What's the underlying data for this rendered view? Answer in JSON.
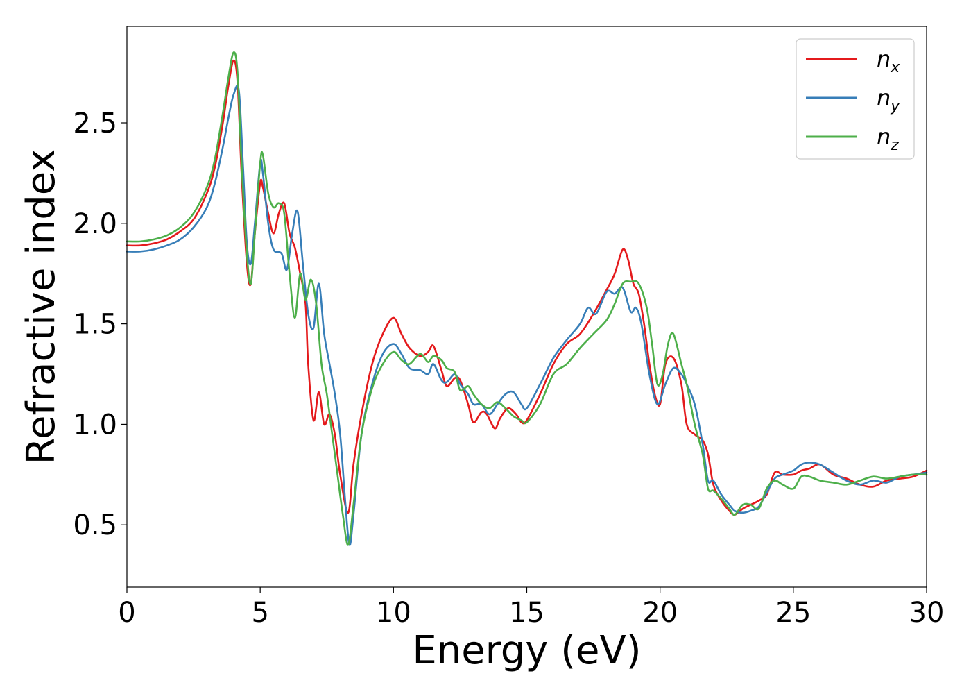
{
  "chart_data": {
    "type": "line",
    "title": "",
    "xlabel": "Energy (eV)",
    "ylabel": "Refractive index",
    "xlim": [
      0,
      30
    ],
    "ylim": [
      0.19,
      2.98
    ],
    "xticks": [
      "0",
      "5",
      "10",
      "15",
      "20",
      "25",
      "30"
    ],
    "xtick_values": [
      0,
      5,
      10,
      15,
      20,
      25,
      30
    ],
    "yticks": [
      "0.5",
      "1.0",
      "1.5",
      "2.0",
      "2.5"
    ],
    "ytick_values": [
      0.5,
      1.0,
      1.5,
      2.0,
      2.5
    ],
    "grid": false,
    "legend_position": "top-right",
    "series": [
      {
        "name": "n_x",
        "label_main": "n",
        "label_sub": "x",
        "color": "#e41a1c",
        "x": [
          0,
          0.5,
          1,
          1.5,
          2,
          2.5,
          3,
          3.3,
          3.6,
          3.8,
          4.0,
          4.15,
          4.3,
          4.5,
          4.65,
          4.8,
          5.0,
          5.1,
          5.3,
          5.5,
          5.7,
          5.9,
          6.1,
          6.3,
          6.5,
          6.7,
          6.8,
          7.0,
          7.2,
          7.4,
          7.6,
          7.8,
          8.0,
          8.3,
          8.5,
          8.8,
          9.2,
          9.6,
          10.0,
          10.3,
          10.6,
          11.0,
          11.3,
          11.5,
          11.8,
          12.0,
          12.3,
          12.5,
          12.8,
          13.0,
          13.3,
          13.5,
          13.8,
          14.0,
          14.3,
          14.6,
          14.8,
          15.0,
          15.5,
          16.0,
          16.5,
          17.0,
          17.5,
          18.0,
          18.3,
          18.6,
          18.8,
          19.0,
          19.2,
          19.4,
          19.6,
          19.8,
          20.0,
          20.2,
          20.5,
          20.8,
          21.0,
          21.3,
          21.6,
          21.8,
          22.0,
          22.3,
          22.6,
          22.8,
          23.1,
          23.4,
          23.7,
          24.0,
          24.3,
          24.6,
          25.0,
          25.3,
          25.6,
          26.0,
          26.5,
          27.0,
          27.5,
          28.0,
          28.5,
          29.0,
          29.5,
          30.0
        ],
        "values": [
          1.89,
          1.89,
          1.9,
          1.92,
          1.96,
          2.02,
          2.15,
          2.28,
          2.5,
          2.68,
          2.81,
          2.7,
          2.25,
          1.8,
          1.7,
          1.95,
          2.2,
          2.18,
          2.05,
          1.95,
          2.05,
          2.1,
          1.95,
          1.88,
          1.75,
          1.6,
          1.3,
          1.02,
          1.16,
          1.0,
          1.05,
          0.95,
          0.75,
          0.56,
          0.8,
          1.05,
          1.3,
          1.45,
          1.53,
          1.45,
          1.38,
          1.34,
          1.36,
          1.39,
          1.27,
          1.19,
          1.23,
          1.22,
          1.1,
          1.01,
          1.06,
          1.05,
          0.98,
          1.03,
          1.08,
          1.05,
          1.01,
          1.02,
          1.15,
          1.3,
          1.4,
          1.45,
          1.55,
          1.67,
          1.75,
          1.87,
          1.82,
          1.7,
          1.65,
          1.5,
          1.3,
          1.15,
          1.1,
          1.3,
          1.33,
          1.2,
          1.0,
          0.95,
          0.92,
          0.85,
          0.7,
          0.62,
          0.57,
          0.55,
          0.58,
          0.6,
          0.62,
          0.65,
          0.76,
          0.75,
          0.75,
          0.77,
          0.78,
          0.8,
          0.75,
          0.73,
          0.7,
          0.69,
          0.72,
          0.73,
          0.74,
          0.77
        ]
      },
      {
        "name": "n_y",
        "label_main": "n",
        "label_sub": "y",
        "color": "#377eb8",
        "x": [
          0,
          0.5,
          1,
          1.5,
          2,
          2.5,
          3,
          3.3,
          3.6,
          3.8,
          4.0,
          4.2,
          4.35,
          4.5,
          4.65,
          4.8,
          5.0,
          5.1,
          5.3,
          5.5,
          5.8,
          6.0,
          6.2,
          6.4,
          6.6,
          6.8,
          7.0,
          7.2,
          7.4,
          7.6,
          7.8,
          8.0,
          8.2,
          8.35,
          8.5,
          8.8,
          9.2,
          9.6,
          10.0,
          10.3,
          10.6,
          11.0,
          11.3,
          11.5,
          11.8,
          12.0,
          12.3,
          12.5,
          12.8,
          13.0,
          13.3,
          13.6,
          13.9,
          14.2,
          14.5,
          14.8,
          15.0,
          15.5,
          16.0,
          16.5,
          17.0,
          17.3,
          17.6,
          18.0,
          18.3,
          18.6,
          18.9,
          19.1,
          19.3,
          19.6,
          19.9,
          20.2,
          20.5,
          20.8,
          21.0,
          21.3,
          21.6,
          21.8,
          22.0,
          22.3,
          22.6,
          22.8,
          23.1,
          23.4,
          23.7,
          24.0,
          24.3,
          24.6,
          25.0,
          25.3,
          25.6,
          26.0,
          26.5,
          27.0,
          27.5,
          28.0,
          28.5,
          29.0,
          29.5,
          30.0
        ],
        "values": [
          1.86,
          1.86,
          1.87,
          1.89,
          1.92,
          1.98,
          2.08,
          2.2,
          2.38,
          2.52,
          2.64,
          2.66,
          2.3,
          1.9,
          1.8,
          2.0,
          2.3,
          2.25,
          2.0,
          1.87,
          1.85,
          1.77,
          1.95,
          2.06,
          1.8,
          1.55,
          1.48,
          1.7,
          1.45,
          1.3,
          1.15,
          0.95,
          0.6,
          0.4,
          0.55,
          0.95,
          1.2,
          1.35,
          1.4,
          1.35,
          1.28,
          1.27,
          1.25,
          1.3,
          1.22,
          1.21,
          1.25,
          1.2,
          1.15,
          1.1,
          1.1,
          1.05,
          1.1,
          1.15,
          1.16,
          1.1,
          1.08,
          1.2,
          1.33,
          1.42,
          1.5,
          1.58,
          1.55,
          1.66,
          1.65,
          1.68,
          1.56,
          1.58,
          1.5,
          1.25,
          1.1,
          1.2,
          1.28,
          1.25,
          1.2,
          1.1,
          0.9,
          0.72,
          0.72,
          0.65,
          0.6,
          0.57,
          0.56,
          0.57,
          0.59,
          0.66,
          0.73,
          0.75,
          0.77,
          0.8,
          0.81,
          0.8,
          0.76,
          0.72,
          0.7,
          0.72,
          0.71,
          0.74,
          0.75,
          0.76
        ]
      },
      {
        "name": "n_z",
        "label_main": "n",
        "label_sub": "z",
        "color": "#4daf4a",
        "x": [
          0,
          0.5,
          1,
          1.5,
          2,
          2.5,
          3,
          3.3,
          3.6,
          3.8,
          4.0,
          4.15,
          4.3,
          4.5,
          4.65,
          4.8,
          5.0,
          5.1,
          5.3,
          5.5,
          5.7,
          5.9,
          6.1,
          6.3,
          6.5,
          6.7,
          6.9,
          7.1,
          7.3,
          7.5,
          7.7,
          7.9,
          8.1,
          8.3,
          8.5,
          8.8,
          9.2,
          9.6,
          10.0,
          10.3,
          10.6,
          11.0,
          11.3,
          11.5,
          11.8,
          12.0,
          12.3,
          12.5,
          12.8,
          13.0,
          13.3,
          13.6,
          13.9,
          14.2,
          14.5,
          14.8,
          15.0,
          15.5,
          16.0,
          16.5,
          17.0,
          17.5,
          18.0,
          18.3,
          18.6,
          18.9,
          19.2,
          19.5,
          19.7,
          19.9,
          20.1,
          20.3,
          20.5,
          20.8,
          21.0,
          21.3,
          21.6,
          21.8,
          22.0,
          22.3,
          22.6,
          22.8,
          23.1,
          23.4,
          23.7,
          24.0,
          24.3,
          24.6,
          25.0,
          25.3,
          25.6,
          26.0,
          26.5,
          27.0,
          27.5,
          28.0,
          28.5,
          29.0,
          29.5,
          30.0
        ],
        "values": [
          1.91,
          1.91,
          1.92,
          1.94,
          1.98,
          2.05,
          2.18,
          2.32,
          2.55,
          2.72,
          2.85,
          2.75,
          2.3,
          1.85,
          1.7,
          1.95,
          2.3,
          2.34,
          2.15,
          2.08,
          2.1,
          2.05,
          1.75,
          1.53,
          1.75,
          1.62,
          1.72,
          1.6,
          1.3,
          1.15,
          0.95,
          0.75,
          0.55,
          0.4,
          0.6,
          0.95,
          1.18,
          1.3,
          1.36,
          1.32,
          1.3,
          1.35,
          1.31,
          1.34,
          1.32,
          1.28,
          1.26,
          1.17,
          1.19,
          1.15,
          1.1,
          1.08,
          1.11,
          1.08,
          1.04,
          1.02,
          1.01,
          1.1,
          1.25,
          1.3,
          1.38,
          1.45,
          1.52,
          1.6,
          1.7,
          1.71,
          1.7,
          1.58,
          1.4,
          1.2,
          1.25,
          1.4,
          1.45,
          1.3,
          1.2,
          1.0,
          0.85,
          0.68,
          0.67,
          0.63,
          0.58,
          0.55,
          0.6,
          0.6,
          0.58,
          0.68,
          0.72,
          0.7,
          0.68,
          0.74,
          0.74,
          0.72,
          0.71,
          0.7,
          0.72,
          0.74,
          0.73,
          0.74,
          0.75,
          0.75
        ]
      }
    ]
  }
}
